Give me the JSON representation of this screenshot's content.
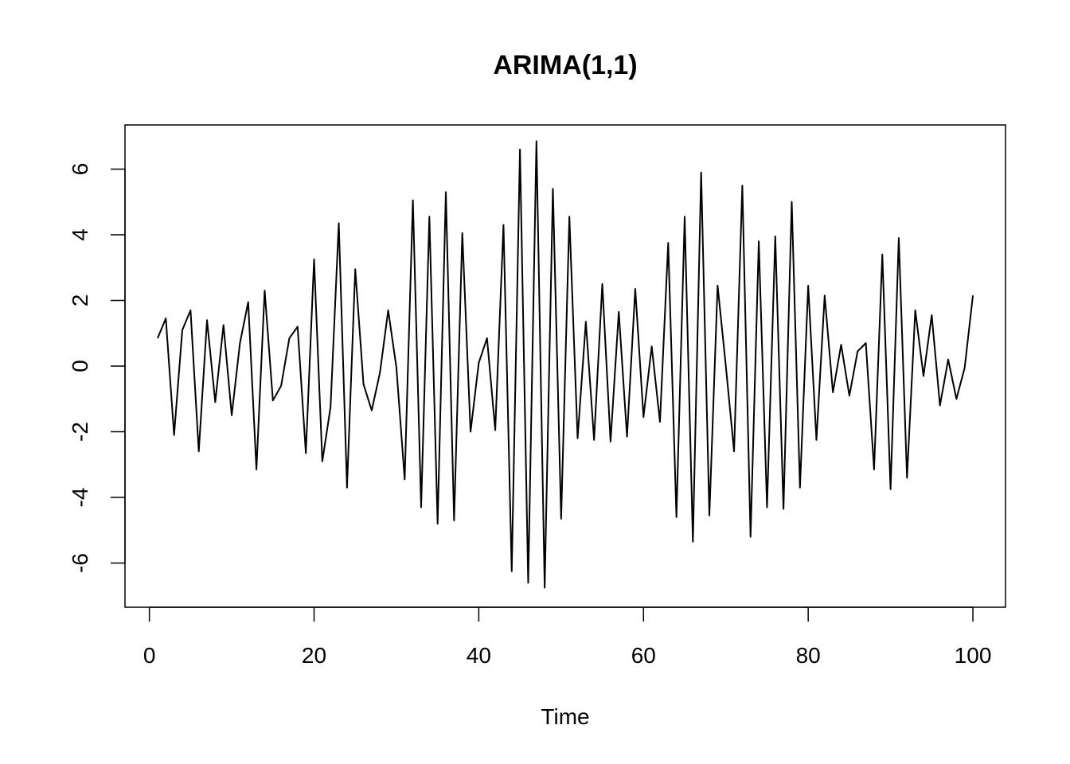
{
  "chart_data": {
    "type": "line",
    "title": "ARIMA(1,1)",
    "xlabel": "Time",
    "ylabel": "",
    "xlim": [
      1,
      100
    ],
    "ylim": [
      -6.8,
      6.8
    ],
    "x_ticks": [
      0,
      20,
      40,
      60,
      80,
      100
    ],
    "x_tick_labels": [
      "0",
      "20",
      "40",
      "60",
      "80",
      "100"
    ],
    "y_ticks": [
      -6,
      -4,
      -2,
      0,
      2,
      4,
      6
    ],
    "y_tick_labels": [
      "-6",
      "-4",
      "-2",
      "0",
      "2",
      "4",
      "6"
    ],
    "grid": false,
    "line_color": "#000000",
    "series": [
      {
        "x": [
          1,
          2,
          3,
          4,
          5,
          6,
          7,
          8,
          9,
          10,
          11,
          12,
          13,
          14,
          15,
          16,
          17,
          18,
          19,
          20,
          21,
          22,
          23,
          24,
          25,
          26,
          27,
          28,
          29,
          30,
          31,
          32,
          33,
          34,
          35,
          36,
          37,
          38,
          39,
          40,
          41,
          42,
          43,
          44,
          45,
          46,
          47,
          48,
          49,
          50,
          51,
          52,
          53,
          54,
          55,
          56,
          57,
          58,
          59,
          60,
          61,
          62,
          63,
          64,
          65,
          66,
          67,
          68,
          69,
          70,
          71,
          72,
          73,
          74,
          75,
          76,
          77,
          78,
          79,
          80,
          81,
          82,
          83,
          84,
          85,
          86,
          87,
          88,
          89,
          90,
          91,
          92,
          93,
          94,
          95,
          96,
          97,
          98,
          99,
          100
        ],
        "values": [
          0.85,
          1.45,
          -2.1,
          1.1,
          1.7,
          -2.6,
          1.4,
          -1.1,
          1.25,
          -1.5,
          0.7,
          1.95,
          -3.15,
          2.3,
          -1.05,
          -0.6,
          0.85,
          1.2,
          -2.65,
          3.25,
          -2.9,
          -1.25,
          4.35,
          -3.7,
          2.95,
          -0.55,
          -1.35,
          -0.2,
          1.7,
          -0.05,
          -3.45,
          5.05,
          -4.3,
          4.55,
          -4.8,
          5.3,
          -4.7,
          4.05,
          -2.0,
          0.1,
          0.85,
          -1.95,
          4.3,
          -6.25,
          6.6,
          -6.6,
          6.85,
          -6.75,
          5.4,
          -4.65,
          4.55,
          -2.2,
          1.35,
          -2.25,
          2.5,
          -2.3,
          1.65,
          -2.15,
          2.35,
          -1.55,
          0.6,
          -1.7,
          3.75,
          -4.6,
          4.55,
          -5.35,
          5.9,
          -4.55,
          2.45,
          0.0,
          -2.6,
          5.5,
          -5.2,
          3.8,
          -4.3,
          3.95,
          -4.35,
          5.0,
          -3.7,
          2.45,
          -2.25,
          2.15,
          -0.8,
          0.65,
          -0.9,
          0.45,
          0.7,
          -3.15,
          3.4,
          -3.75,
          3.9,
          -3.4,
          1.7,
          -0.3,
          1.55,
          -1.2,
          0.2,
          -1.0,
          -0.05,
          2.15
        ]
      }
    ]
  }
}
